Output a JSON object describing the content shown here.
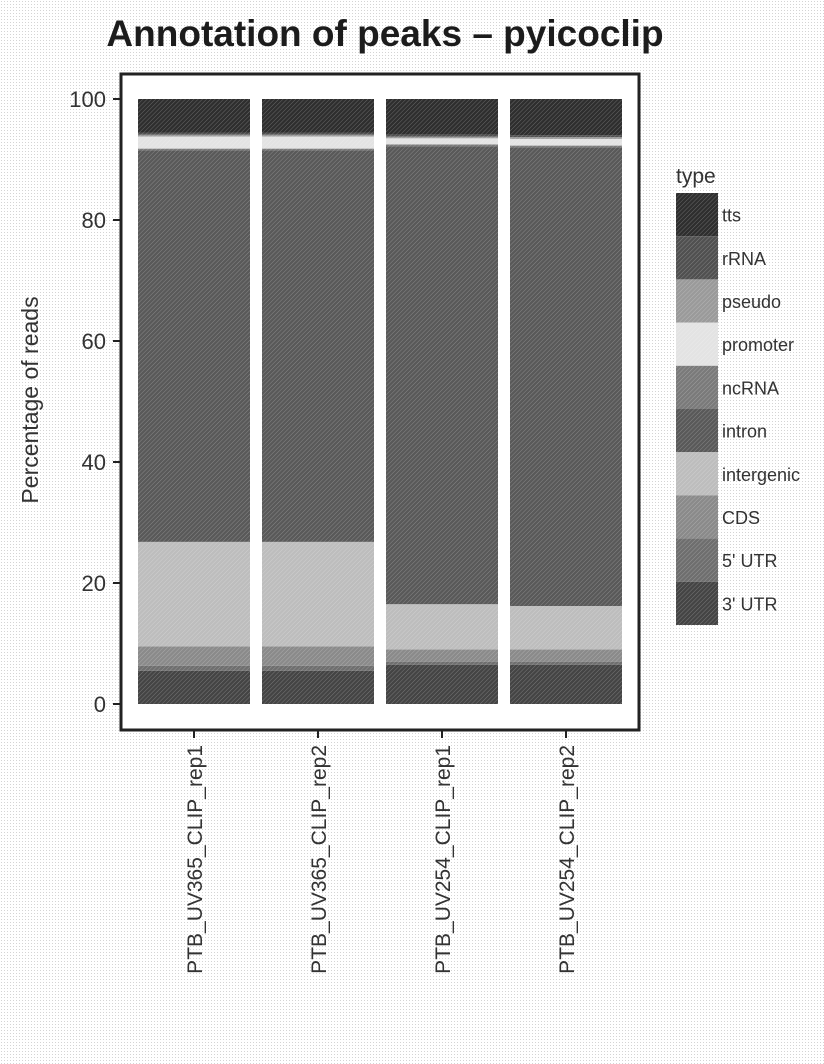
{
  "chart_data": {
    "type": "bar",
    "stacked": true,
    "title": "Annotation of peaks – pyicoclip",
    "ylabel": "Percentage of reads",
    "xlabel": "",
    "ylim": [
      0,
      100
    ],
    "yticks": [
      0,
      20,
      40,
      60,
      80,
      100
    ],
    "grid": false,
    "legend": {
      "title": "type",
      "position": "right"
    },
    "categories": [
      "PTB_UV365_CLIP_rep1",
      "PTB_UV365_CLIP_rep2",
      "PTB_UV254_CLIP_rep1",
      "PTB_UV254_CLIP_rep2"
    ],
    "series": [
      {
        "name": "3' UTR",
        "color": "#444444",
        "values": [
          5.5,
          5.5,
          6.5,
          6.5
        ]
      },
      {
        "name": "5' UTR",
        "color": "#6e6e6e",
        "values": [
          0.8,
          0.8,
          0.5,
          0.5
        ]
      },
      {
        "name": "CDS",
        "color": "#8a8a8a",
        "values": [
          3.2,
          3.2,
          2.0,
          2.0
        ]
      },
      {
        "name": "intergenic",
        "color": "#bdbdbd",
        "values": [
          17.3,
          17.3,
          7.5,
          7.2
        ]
      },
      {
        "name": "intron",
        "color": "#595959",
        "values": [
          64.7,
          64.7,
          75.7,
          75.8
        ]
      },
      {
        "name": "ncRNA",
        "color": "#7a7a7a",
        "values": [
          0.3,
          0.3,
          0.3,
          0.3
        ]
      },
      {
        "name": "promoter",
        "color": "#e3e3e3",
        "values": [
          2.0,
          2.0,
          1.0,
          1.1
        ]
      },
      {
        "name": "pseudo",
        "color": "#9a9a9a",
        "values": [
          0.3,
          0.3,
          0.3,
          0.3
        ]
      },
      {
        "name": "rRNA",
        "color": "#505050",
        "values": [
          0.3,
          0.3,
          0.3,
          0.3
        ]
      },
      {
        "name": "tts",
        "color": "#2e2e2e",
        "values": [
          5.6,
          5.6,
          5.9,
          6.0
        ]
      }
    ]
  }
}
